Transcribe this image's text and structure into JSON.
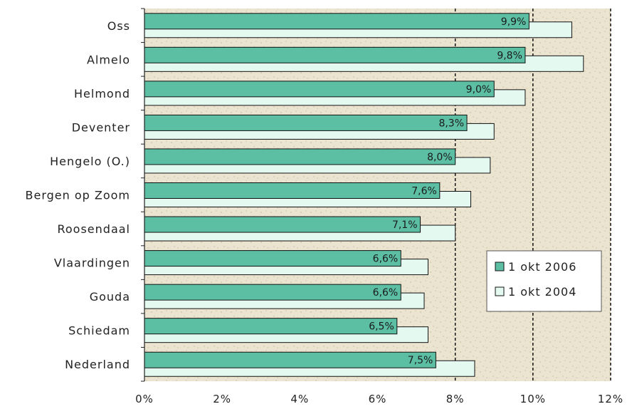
{
  "chart_data": {
    "type": "bar",
    "orientation": "horizontal",
    "categories": [
      "Oss",
      "Almelo",
      "Helmond",
      "Deventer",
      "Hengelo (O.)",
      "Bergen op Zoom",
      "Roosendaal",
      "Vlaardingen",
      "Gouda",
      "Schiedam",
      "Nederland"
    ],
    "series": [
      {
        "name": "1 okt 2006",
        "values": [
          9.9,
          9.8,
          9.0,
          8.3,
          8.0,
          7.6,
          7.1,
          6.6,
          6.6,
          6.5,
          7.5
        ],
        "data_labels": [
          "9,9%",
          "9,8%",
          "9,0%",
          "8,3%",
          "8,0%",
          "7,6%",
          "7,1%",
          "6,6%",
          "6,6%",
          "6,5%",
          "7,5%"
        ],
        "color": "#5cbfa3"
      },
      {
        "name": "1 okt 2004",
        "values": [
          11.0,
          11.3,
          9.8,
          9.0,
          8.9,
          8.4,
          8.0,
          7.3,
          7.2,
          7.3,
          8.5
        ],
        "color": "#e4faf1"
      }
    ],
    "xlim": [
      0,
      12
    ],
    "ticks": [
      0,
      2,
      4,
      6,
      8,
      10,
      12
    ],
    "tick_labels": [
      "0%",
      "2%",
      "4%",
      "6%",
      "8%",
      "10%",
      "12%"
    ],
    "gridlines": [
      8,
      10,
      12
    ],
    "legend_position": "right",
    "colors": {
      "background": "#ece5d2",
      "bar_outline": "#111111"
    }
  }
}
